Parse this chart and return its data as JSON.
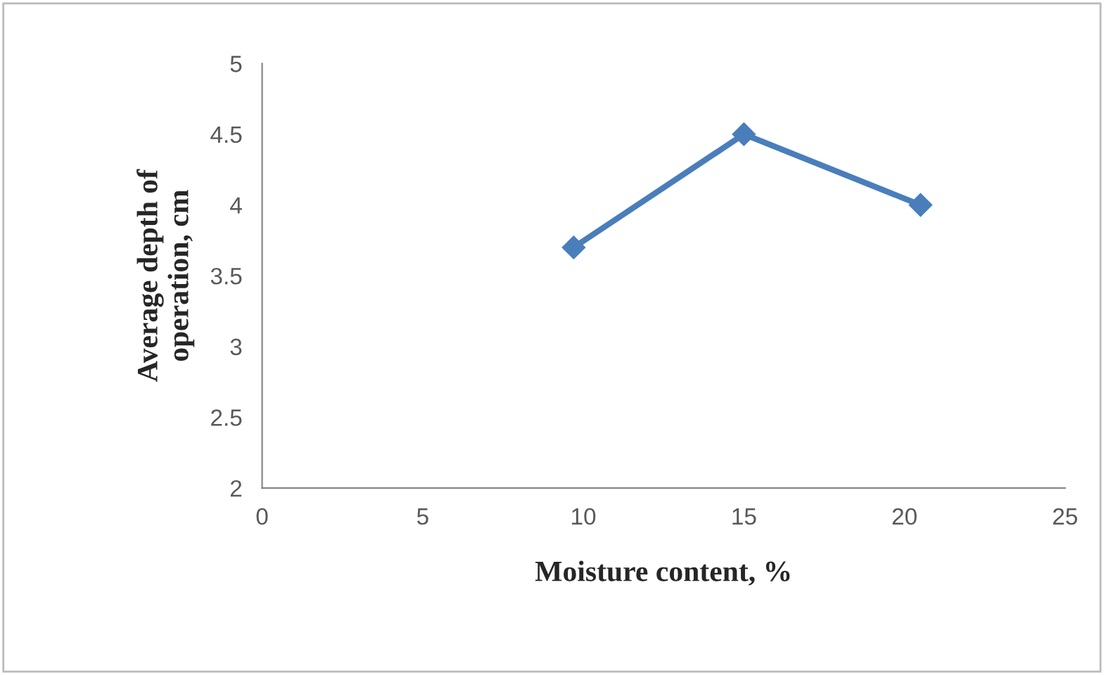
{
  "chart_data": {
    "type": "line",
    "xlabel": "Moisture content, %",
    "ylabel": "Average depth of\noperation, cm",
    "x": [
      9.7,
      15,
      20.5
    ],
    "series": [
      {
        "color": "#4a7ebb",
        "values": [
          3.7,
          4.5,
          4.0
        ]
      }
    ],
    "xlim": [
      0,
      25
    ],
    "xticks": [
      0,
      5,
      10,
      15,
      20,
      25
    ],
    "ylim": [
      2,
      5
    ],
    "yticks": [
      2,
      {
        "value": 2.5,
        "label": "2.5"
      },
      3,
      {
        "value": 3.5,
        "label": "3.5"
      },
      4,
      {
        "value": 4.5,
        "label": "4.5"
      },
      5
    ],
    "grid": false,
    "legend": false,
    "marker": "diamond",
    "line_style": "solid"
  }
}
